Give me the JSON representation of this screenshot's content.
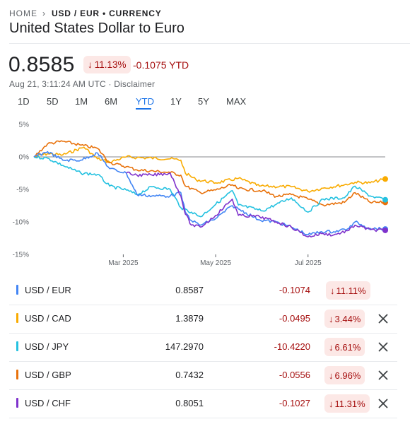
{
  "breadcrumb": {
    "home": "HOME",
    "current": "USD / EUR • CURRENCY"
  },
  "title": "United States Dollar to Euro",
  "quote": {
    "price": "0.8585",
    "pct_change": "11.13%",
    "ytd_change": "-0.1075 YTD",
    "timestamp": "Aug 21, 3:11:24 AM UTC · ",
    "disclaimer": "Disclaimer"
  },
  "range_tabs": [
    "1D",
    "5D",
    "1M",
    "6M",
    "YTD",
    "1Y",
    "5Y",
    "MAX"
  ],
  "active_range": "YTD",
  "colors": {
    "USD / EUR": "#4285f4",
    "USD / CAD": "#f9ab00",
    "USD / JPY": "#24c1e0",
    "USD / GBP": "#e8710a",
    "USD / CHF": "#7f32cc",
    "negative": "#a50e0e",
    "badge_bg": "#fce8e6",
    "accent": "#1a73e8"
  },
  "chart_data": {
    "type": "line",
    "y_unit": "percent change YTD",
    "ylim": [
      -15,
      5
    ],
    "y_ticks": [
      5,
      0,
      -5,
      -10,
      -15
    ],
    "y_tick_labels": [
      "5%",
      "0%",
      "-5%",
      "-10%",
      "-15%"
    ],
    "x_ticks": [
      "2025-03-01",
      "2025-05-01",
      "2025-07-01"
    ],
    "x_tick_labels": [
      "Mar 2025",
      "May 2025",
      "Jul 2025"
    ],
    "x_range": [
      "2025-01-01",
      "2025-08-21"
    ],
    "series": [
      {
        "name": "USD / EUR",
        "points": [
          [
            "2025-01-01",
            0
          ],
          [
            "2025-01-10",
            0.8
          ],
          [
            "2025-01-20",
            -0.5
          ],
          [
            "2025-02-01",
            -0.5
          ],
          [
            "2025-02-12",
            0.6
          ],
          [
            "2025-02-20",
            -1.8
          ],
          [
            "2025-03-03",
            -2.5
          ],
          [
            "2025-03-10",
            -5.8
          ],
          [
            "2025-03-20",
            -6
          ],
          [
            "2025-04-01",
            -6
          ],
          [
            "2025-04-08",
            -5.5
          ],
          [
            "2025-04-11",
            -8.5
          ],
          [
            "2025-04-15",
            -9.8
          ],
          [
            "2025-04-21",
            -10.5
          ],
          [
            "2025-05-01",
            -9.5
          ],
          [
            "2025-05-12",
            -7.5
          ],
          [
            "2025-05-16",
            -8
          ],
          [
            "2025-05-30",
            -9.7
          ],
          [
            "2025-06-10",
            -10
          ],
          [
            "2025-06-20",
            -10.8
          ],
          [
            "2025-07-01",
            -12
          ],
          [
            "2025-07-10",
            -11.5
          ],
          [
            "2025-07-18",
            -11.5
          ],
          [
            "2025-07-28",
            -11
          ],
          [
            "2025-08-01",
            -10
          ],
          [
            "2025-08-11",
            -11
          ],
          [
            "2025-08-21",
            -11.1
          ]
        ]
      },
      {
        "name": "USD / CAD",
        "points": [
          [
            "2025-01-01",
            0
          ],
          [
            "2025-01-10",
            0.5
          ],
          [
            "2025-01-20",
            0.3
          ],
          [
            "2025-02-03",
            1.5
          ],
          [
            "2025-02-12",
            -0.3
          ],
          [
            "2025-02-20",
            -0.8
          ],
          [
            "2025-03-03",
            0
          ],
          [
            "2025-03-10",
            -0.1
          ],
          [
            "2025-04-01",
            -0.3
          ],
          [
            "2025-04-08",
            -0.5
          ],
          [
            "2025-04-11",
            -2.5
          ],
          [
            "2025-04-18",
            -3.5
          ],
          [
            "2025-05-01",
            -4
          ],
          [
            "2025-05-16",
            -3.3
          ],
          [
            "2025-05-30",
            -4.5
          ],
          [
            "2025-06-20",
            -4.6
          ],
          [
            "2025-07-01",
            -5.3
          ],
          [
            "2025-07-11",
            -4.8
          ],
          [
            "2025-07-25",
            -4.3
          ],
          [
            "2025-08-01",
            -3.9
          ],
          [
            "2025-08-11",
            -4
          ],
          [
            "2025-08-21",
            -3.4
          ]
        ]
      },
      {
        "name": "USD / JPY",
        "points": [
          [
            "2025-01-01",
            0
          ],
          [
            "2025-01-10",
            -0.2
          ],
          [
            "2025-01-20",
            -1.3
          ],
          [
            "2025-02-01",
            -2.5
          ],
          [
            "2025-02-12",
            -2.7
          ],
          [
            "2025-02-20",
            -4.5
          ],
          [
            "2025-03-03",
            -5.1
          ],
          [
            "2025-03-10",
            -5.8
          ],
          [
            "2025-03-20",
            -4.6
          ],
          [
            "2025-04-01",
            -5
          ],
          [
            "2025-04-08",
            -7.8
          ],
          [
            "2025-04-15",
            -8.5
          ],
          [
            "2025-04-21",
            -9.2
          ],
          [
            "2025-05-01",
            -7.3
          ],
          [
            "2025-05-12",
            -5.2
          ],
          [
            "2025-05-16",
            -7.4
          ],
          [
            "2025-06-01",
            -8.3
          ],
          [
            "2025-06-10",
            -7.3
          ],
          [
            "2025-06-20",
            -6.3
          ],
          [
            "2025-07-01",
            -8.5
          ],
          [
            "2025-07-11",
            -6.5
          ],
          [
            "2025-07-25",
            -6.3
          ],
          [
            "2025-08-01",
            -4.5
          ],
          [
            "2025-08-11",
            -6
          ],
          [
            "2025-08-21",
            -6.6
          ]
        ]
      },
      {
        "name": "USD / GBP",
        "points": [
          [
            "2025-01-01",
            0
          ],
          [
            "2025-01-10",
            2
          ],
          [
            "2025-01-20",
            2.4
          ],
          [
            "2025-02-01",
            1.8
          ],
          [
            "2025-02-12",
            1.3
          ],
          [
            "2025-02-20",
            -0.9
          ],
          [
            "2025-03-03",
            -1.5
          ],
          [
            "2025-03-10",
            -2
          ],
          [
            "2025-04-01",
            -2.4
          ],
          [
            "2025-04-08",
            -2.8
          ],
          [
            "2025-04-11",
            -4.5
          ],
          [
            "2025-04-21",
            -5.5
          ],
          [
            "2025-05-01",
            -5.1
          ],
          [
            "2025-05-12",
            -4.3
          ],
          [
            "2025-05-16",
            -4.9
          ],
          [
            "2025-06-01",
            -5.2
          ],
          [
            "2025-06-10",
            -6.1
          ],
          [
            "2025-06-20",
            -5.8
          ],
          [
            "2025-07-01",
            -6.5
          ],
          [
            "2025-07-11",
            -7.4
          ],
          [
            "2025-07-25",
            -7
          ],
          [
            "2025-08-01",
            -5.5
          ],
          [
            "2025-08-11",
            -7
          ],
          [
            "2025-08-21",
            -7
          ]
        ]
      },
      {
        "name": "USD / CHF",
        "points": [
          [
            "2025-03-03",
            -2.5
          ],
          [
            "2025-03-10",
            -2.8
          ],
          [
            "2025-03-20",
            -2.8
          ],
          [
            "2025-04-01",
            -2.5
          ],
          [
            "2025-04-08",
            -6
          ],
          [
            "2025-04-11",
            -8.8
          ],
          [
            "2025-04-15",
            -10.5
          ],
          [
            "2025-04-21",
            -10.8
          ],
          [
            "2025-05-01",
            -9
          ],
          [
            "2025-05-12",
            -6.5
          ],
          [
            "2025-05-16",
            -9
          ],
          [
            "2025-05-30",
            -9.2
          ],
          [
            "2025-06-10",
            -10
          ],
          [
            "2025-06-20",
            -10.8
          ],
          [
            "2025-07-01",
            -12.3
          ],
          [
            "2025-07-10",
            -11.8
          ],
          [
            "2025-07-18",
            -12
          ],
          [
            "2025-07-28",
            -11.3
          ],
          [
            "2025-08-01",
            -10.5
          ],
          [
            "2025-08-11",
            -11.2
          ],
          [
            "2025-08-21",
            -11.3
          ]
        ]
      }
    ]
  },
  "comparison_rows": [
    {
      "pair": "USD / EUR",
      "value": "0.8587",
      "change": "-0.1074",
      "pct": "11.11%",
      "removable": false
    },
    {
      "pair": "USD / CAD",
      "value": "1.3879",
      "change": "-0.0495",
      "pct": "3.44%",
      "removable": true
    },
    {
      "pair": "USD / JPY",
      "value": "147.2970",
      "change": "-10.4220",
      "pct": "6.61%",
      "removable": true
    },
    {
      "pair": "USD / GBP",
      "value": "0.7432",
      "change": "-0.0556",
      "pct": "6.96%",
      "removable": true
    },
    {
      "pair": "USD / CHF",
      "value": "0.8051",
      "change": "-0.1027",
      "pct": "11.31%",
      "removable": true
    }
  ],
  "icons": {
    "down_arrow": "arrow-down-icon",
    "close": "close-icon",
    "breadcrumb_sep": "chevron-right-icon"
  }
}
